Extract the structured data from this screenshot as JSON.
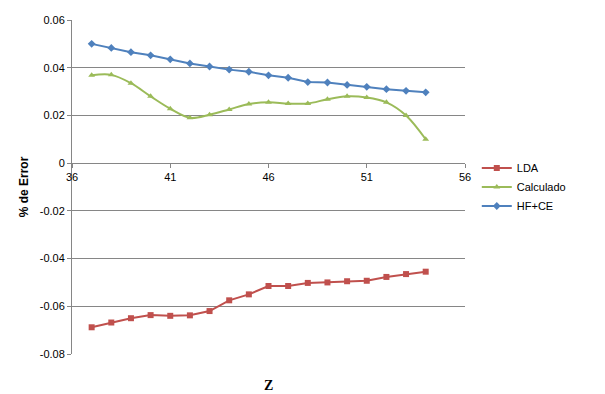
{
  "chart_data": {
    "type": "line",
    "x_label": "Z",
    "y_label": "% de Error",
    "xlim": [
      36,
      56
    ],
    "xticks": [
      36,
      41,
      46,
      51,
      56
    ],
    "ylim": [
      -0.08,
      0.06
    ],
    "yticks": [
      -0.08,
      -0.06,
      -0.04,
      -0.02,
      0,
      0.02,
      0.04,
      0.06
    ],
    "grid": true,
    "legend": "right",
    "x": [
      37,
      38,
      39,
      40,
      41,
      42,
      43,
      44,
      45,
      46,
      47,
      48,
      49,
      50,
      51,
      52,
      53,
      54
    ],
    "series": [
      {
        "name": "LDA",
        "color": "#C0504D",
        "marker": "square",
        "line_style": "solid",
        "values": [
          -0.0688,
          -0.0668,
          -0.065,
          -0.0637,
          -0.064,
          -0.0638,
          -0.062,
          -0.0575,
          -0.055,
          -0.0515,
          -0.0515,
          -0.0502,
          -0.05,
          -0.0495,
          -0.0493,
          -0.0477,
          -0.0465,
          -0.0455
        ]
      },
      {
        "name": "Calculado",
        "color": "#9BBB59",
        "marker": "triangle-up",
        "line_style": "smooth",
        "values": [
          0.0368,
          0.037,
          0.0335,
          0.028,
          0.0228,
          0.019,
          0.0203,
          0.0225,
          0.0248,
          0.0255,
          0.025,
          0.025,
          0.0268,
          0.028,
          0.0275,
          0.0255,
          0.02,
          0.01
        ]
      },
      {
        "name": "HF+CE",
        "color": "#4F81BD",
        "marker": "diamond",
        "line_style": "solid",
        "values": [
          0.05,
          0.0483,
          0.0465,
          0.0452,
          0.0435,
          0.0418,
          0.0405,
          0.0392,
          0.0383,
          0.0368,
          0.0358,
          0.034,
          0.0338,
          0.0328,
          0.032,
          0.031,
          0.0303,
          0.0297
        ]
      }
    ]
  }
}
